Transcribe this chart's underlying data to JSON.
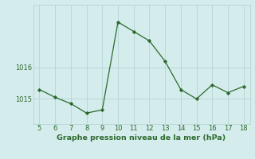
{
  "x": [
    5,
    6,
    7,
    8,
    9,
    10,
    11,
    12,
    13,
    14,
    15,
    16,
    17,
    18
  ],
  "y": [
    1015.3,
    1015.05,
    1014.85,
    1014.55,
    1014.65,
    1017.45,
    1017.15,
    1016.85,
    1016.2,
    1015.3,
    1015.0,
    1015.45,
    1015.2,
    1015.4
  ],
  "line_color": "#2d6a2d",
  "marker_color": "#2d6a2d",
  "bg_color": "#d4ecec",
  "grid_color": "#aed0d0",
  "title": "Graphe pression niveau de la mer (hPa)",
  "xlim": [
    4.6,
    18.4
  ],
  "ylim": [
    1014.2,
    1018.0
  ],
  "yticks": [
    1015,
    1016
  ],
  "xticks": [
    5,
    6,
    7,
    8,
    9,
    10,
    11,
    12,
    13,
    14,
    15,
    16,
    17,
    18
  ],
  "title_fontsize": 6.8,
  "tick_fontsize": 6.0,
  "title_color": "#2d6a2d",
  "linewidth": 0.9,
  "markersize": 2.2
}
